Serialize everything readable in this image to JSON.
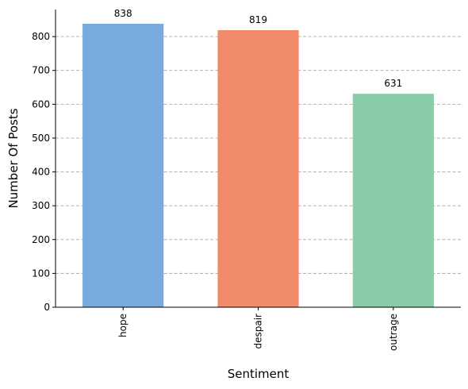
{
  "chart_data": {
    "type": "bar",
    "categories": [
      "hope",
      "despair",
      "outrage"
    ],
    "values": [
      838,
      819,
      631
    ],
    "xlabel": "Sentiment",
    "ylabel": "Number Of Posts",
    "ylim": [
      0,
      880
    ],
    "yticks": [
      0,
      100,
      200,
      300,
      400,
      500,
      600,
      700,
      800
    ],
    "grid": "y-dashed",
    "colors": [
      "#78aade",
      "#f08a68",
      "#8acca8"
    ],
    "data_labels": [
      "838",
      "819",
      "631"
    ]
  }
}
